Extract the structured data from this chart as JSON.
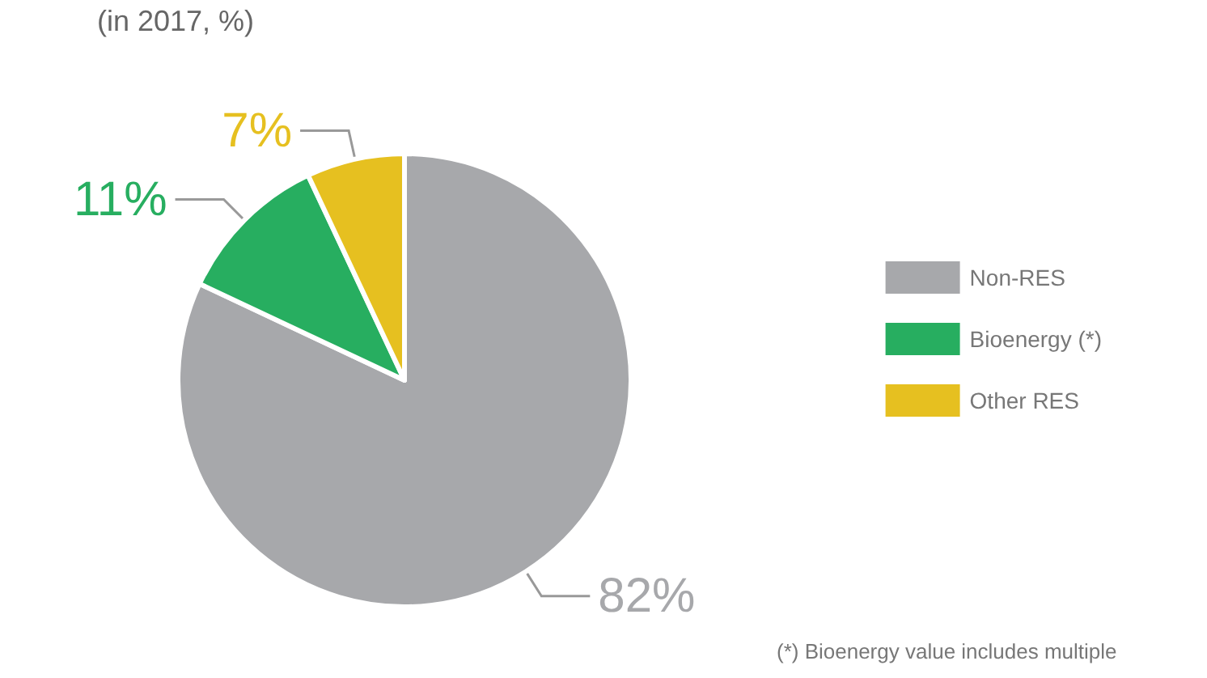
{
  "chart_data": {
    "type": "pie",
    "subtitle": "(in 2017, %)",
    "categories": [
      "Non-RES",
      "Bioenergy (*)",
      "Other RES"
    ],
    "values": [
      82,
      11,
      7
    ],
    "colors": [
      "#a7a8ab",
      "#27ae60",
      "#e6c020"
    ],
    "value_labels": [
      "82%",
      "11%",
      "7%"
    ],
    "legend": "right",
    "annotations": [
      "(*) Bioenergy value includes multiple"
    ]
  }
}
